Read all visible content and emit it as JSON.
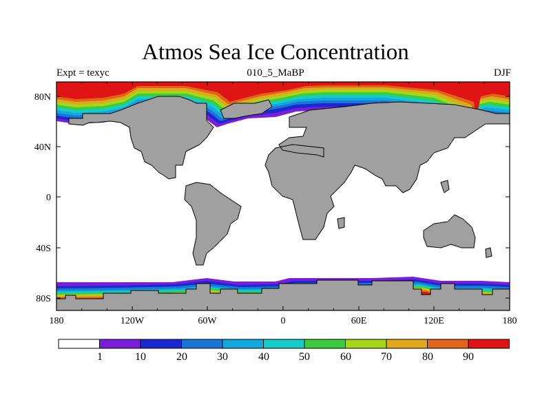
{
  "title": "Atmos Sea Ice Concentration",
  "subtitle_left": "Expt = texyc",
  "subtitle_center": "010_5_MaBP",
  "subtitle_right": "DJF",
  "axes": {
    "lon_ticks": [
      "180",
      "120W",
      "60W",
      "0",
      "60E",
      "120E",
      "180"
    ],
    "lat_ticks": [
      "80N",
      "40N",
      "0",
      "40S",
      "80S"
    ]
  },
  "colorbar": {
    "labels": [
      "1",
      "10",
      "20",
      "30",
      "40",
      "50",
      "60",
      "70",
      "80",
      "90"
    ],
    "colors": [
      "#ffffff",
      "#7a1ed9",
      "#1a28cf",
      "#1a76d6",
      "#12a8dd",
      "#14cdc8",
      "#3ccc3c",
      "#a8d61a",
      "#e0a81a",
      "#e0641a",
      "#e01414"
    ]
  },
  "palette": {
    "land": "#a0a0a0",
    "ice": "#e01414",
    "frame": "#000000"
  }
}
